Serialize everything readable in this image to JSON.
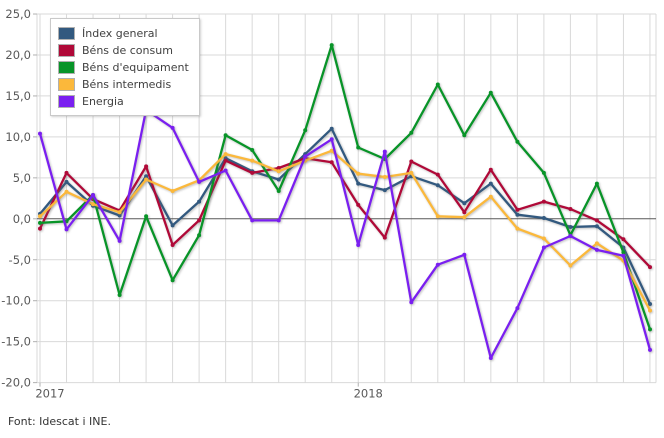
{
  "footer": {
    "text": "Font: Idescat i INE."
  },
  "axes": {
    "y_tick_labels": [
      "25,0",
      "20,0",
      "15,0",
      "10,0",
      "5,0",
      "0,0",
      "-5,0",
      "-10,0",
      "-15,0",
      "-20,0"
    ],
    "y_tick_values": [
      25,
      20,
      15,
      10,
      5,
      0,
      -5,
      -10,
      -15,
      -20
    ],
    "x_year_labels": [
      {
        "label": "2017",
        "month_index": 0
      },
      {
        "label": "2018",
        "month_index": 12
      }
    ]
  },
  "style": {
    "grid_color": "#d9d9d9",
    "zero_line_color": "#595959",
    "axis_text_color": "#595959",
    "background": "#ffffff"
  },
  "chart_data": {
    "type": "line",
    "title": "",
    "xlabel": "",
    "ylabel": "",
    "ylim": [
      -20,
      25
    ],
    "grid": true,
    "legend_position": "top-left",
    "categories": [
      "2017-01",
      "2017-02",
      "2017-03",
      "2017-04",
      "2017-05",
      "2017-06",
      "2017-07",
      "2017-08",
      "2017-09",
      "2017-10",
      "2017-11",
      "2017-12",
      "2018-01",
      "2018-02",
      "2018-03",
      "2018-04",
      "2018-05",
      "2018-06",
      "2018-07",
      "2018-08",
      "2018-09",
      "2018-10",
      "2018-11",
      "2018-12"
    ],
    "series": [
      {
        "name": "Índex general",
        "color": "#32597f",
        "values": [
          0.6,
          4.5,
          1.6,
          0.4,
          5.2,
          -0.8,
          2.1,
          7.4,
          5.8,
          4.8,
          7.9,
          11.0,
          4.3,
          3.5,
          5.2,
          4.1,
          1.9,
          4.3,
          0.5,
          0.1,
          -1.0,
          -0.9,
          -3.5,
          -10.4
        ]
      },
      {
        "name": "Béns de consum",
        "color": "#b00938",
        "values": [
          -1.2,
          5.6,
          2.4,
          1.0,
          6.4,
          -3.2,
          -0.2,
          7.1,
          5.6,
          6.2,
          7.4,
          6.9,
          1.7,
          -2.3,
          7.0,
          5.4,
          0.8,
          6.0,
          1.1,
          2.1,
          1.2,
          -0.2,
          -2.5,
          -5.9
        ]
      },
      {
        "name": "Béns d'equipament",
        "color": "#089428",
        "values": [
          -0.5,
          -0.3,
          2.9,
          -9.3,
          0.3,
          -7.5,
          -2.0,
          10.2,
          8.4,
          3.4,
          10.8,
          21.2,
          8.7,
          7.3,
          10.5,
          16.4,
          10.2,
          15.4,
          9.4,
          5.6,
          -2.0,
          4.3,
          -4.1,
          -13.5
        ]
      },
      {
        "name": "Béns intermedis",
        "color": "#fbb83b",
        "values": [
          0.3,
          3.3,
          1.8,
          0.8,
          4.8,
          3.4,
          4.7,
          7.9,
          7.1,
          5.8,
          7.1,
          8.3,
          5.5,
          5.1,
          5.6,
          0.3,
          0.2,
          2.7,
          -1.2,
          -2.4,
          -5.7,
          -3.0,
          -5.1,
          -11.2
        ]
      },
      {
        "name": "Energia",
        "color": "#7a1ff0",
        "values": [
          10.4,
          -1.3,
          2.9,
          -2.7,
          13.3,
          11.1,
          4.5,
          5.9,
          -0.2,
          -0.2,
          7.6,
          9.7,
          -3.2,
          8.2,
          -10.2,
          -5.6,
          -4.4,
          -17.0,
          -10.9,
          -3.5,
          -2.1,
          -3.8,
          -4.5,
          -16.0
        ]
      }
    ]
  }
}
